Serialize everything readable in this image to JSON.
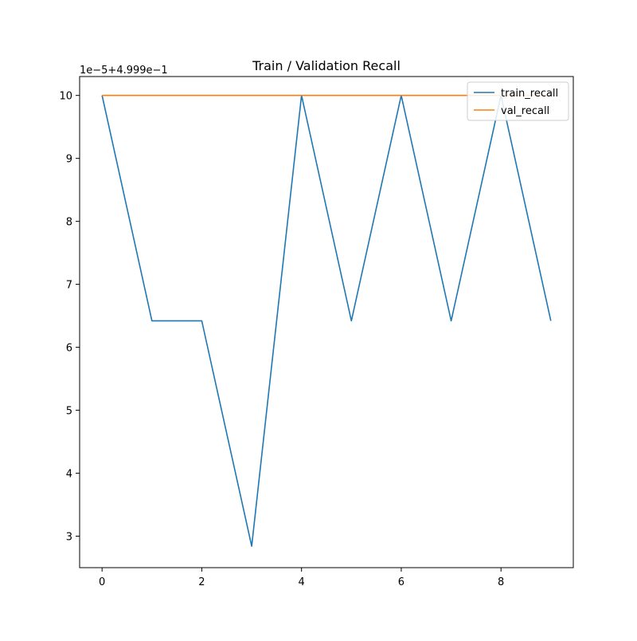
{
  "chart_data": {
    "type": "line",
    "title": "Train / Validation Recall",
    "offset_label": "1e−5+4.999e−1",
    "xlabel": "",
    "ylabel": "",
    "x": [
      0,
      1,
      2,
      3,
      4,
      5,
      6,
      7,
      8,
      9
    ],
    "x_ticks": [
      "0",
      "2",
      "4",
      "6",
      "8"
    ],
    "x_tick_values": [
      0,
      2,
      4,
      6,
      8
    ],
    "y_ticks": [
      "3",
      "4",
      "5",
      "6",
      "7",
      "8",
      "9",
      "10"
    ],
    "y_tick_values": [
      3,
      4,
      5,
      6,
      7,
      8,
      9,
      10
    ],
    "xlim": [
      -0.45,
      9.45
    ],
    "ylim": [
      2.5,
      10.3
    ],
    "grid": false,
    "legend_position": "upper right",
    "series": [
      {
        "name": "train_recall",
        "color": "#1f77b4",
        "values": [
          10,
          6.42,
          6.42,
          2.84,
          10,
          6.42,
          10,
          6.42,
          10,
          6.42
        ]
      },
      {
        "name": "val_recall",
        "color": "#ff7f0e",
        "values": [
          10,
          10,
          10,
          10,
          10,
          10,
          10,
          10,
          10,
          10
        ]
      }
    ]
  }
}
